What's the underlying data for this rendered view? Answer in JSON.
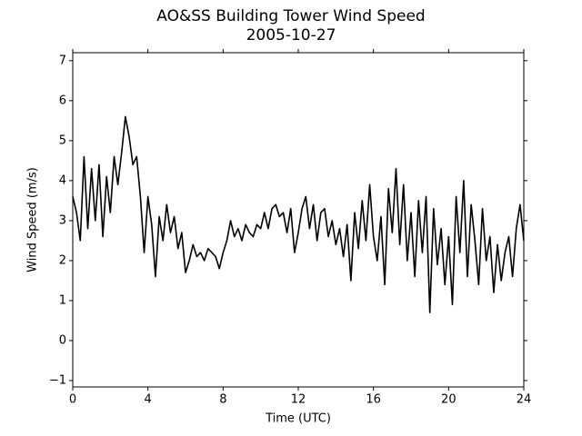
{
  "chart_data": {
    "type": "line",
    "title": "AO&SS Building Tower Wind Speed",
    "subtitle": "2005-10-27",
    "xlabel": "Time (UTC)",
    "ylabel": "Wind Speed (m/s)",
    "color": "#000000",
    "x": [
      0,
      0.2,
      0.4,
      0.6,
      0.8,
      1,
      1.2,
      1.4,
      1.6,
      1.8,
      2,
      2.2,
      2.4,
      2.6,
      2.8,
      3,
      3.2,
      3.4,
      3.6,
      3.8,
      4,
      4.2,
      4.4,
      4.6,
      4.8,
      5,
      5.2,
      5.4,
      5.6,
      5.8,
      6,
      6.2,
      6.4,
      6.6,
      6.8,
      7,
      7.2,
      7.4,
      7.6,
      7.8,
      8,
      8.2,
      8.4,
      8.6,
      8.8,
      9,
      9.2,
      9.4,
      9.6,
      9.8,
      10,
      10.2,
      10.4,
      10.6,
      10.8,
      11,
      11.2,
      11.4,
      11.6,
      11.8,
      12,
      12.2,
      12.4,
      12.6,
      12.8,
      13,
      13.2,
      13.4,
      13.6,
      13.8,
      14,
      14.2,
      14.4,
      14.6,
      14.8,
      15,
      15.2,
      15.4,
      15.6,
      15.8,
      16,
      16.2,
      16.4,
      16.6,
      16.8,
      17,
      17.2,
      17.4,
      17.6,
      17.8,
      18,
      18.2,
      18.4,
      18.6,
      18.8,
      19,
      19.2,
      19.4,
      19.6,
      19.8,
      20,
      20.2,
      20.4,
      20.6,
      20.8,
      21,
      21.2,
      21.4,
      21.6,
      21.8,
      22,
      22.2,
      22.4,
      22.6,
      22.8,
      23,
      23.2,
      23.4,
      23.6,
      23.8,
      24
    ],
    "values": [
      3.6,
      3.2,
      2.5,
      4.6,
      2.8,
      4.3,
      3.0,
      4.4,
      2.6,
      4.1,
      3.2,
      4.6,
      3.9,
      4.7,
      5.6,
      5.1,
      4.4,
      4.6,
      3.6,
      2.2,
      3.6,
      2.9,
      1.6,
      3.1,
      2.5,
      3.4,
      2.7,
      3.1,
      2.3,
      2.7,
      1.7,
      2.0,
      2.4,
      2.1,
      2.2,
      2.0,
      2.3,
      2.2,
      2.1,
      1.8,
      2.2,
      2.5,
      3.0,
      2.6,
      2.8,
      2.5,
      2.9,
      2.7,
      2.6,
      2.9,
      2.8,
      3.2,
      2.8,
      3.3,
      3.4,
      3.1,
      3.2,
      2.7,
      3.3,
      2.2,
      2.7,
      3.3,
      3.6,
      2.8,
      3.4,
      2.5,
      3.2,
      3.3,
      2.6,
      3.0,
      2.4,
      2.8,
      2.1,
      2.9,
      1.5,
      3.2,
      2.3,
      3.5,
      2.5,
      3.9,
      2.6,
      2.0,
      3.1,
      1.4,
      3.8,
      2.7,
      4.3,
      2.4,
      3.9,
      2.0,
      3.2,
      1.6,
      3.5,
      2.2,
      3.6,
      0.7,
      3.3,
      1.9,
      2.8,
      1.4,
      2.6,
      0.9,
      3.6,
      2.2,
      4.0,
      1.6,
      3.4,
      2.5,
      1.4,
      3.3,
      2.0,
      2.6,
      1.2,
      2.4,
      1.5,
      2.2,
      2.6,
      1.6,
      2.8,
      3.4,
      2.5
    ],
    "xlim": [
      0,
      24
    ],
    "ylim": [
      -1.16,
      7.2
    ],
    "xticks": [
      0,
      4,
      8,
      12,
      16,
      20,
      24
    ],
    "yticks": [
      {
        "value": -1,
        "label": "−1"
      },
      0,
      1,
      2,
      3,
      4,
      5,
      6,
      7
    ]
  }
}
